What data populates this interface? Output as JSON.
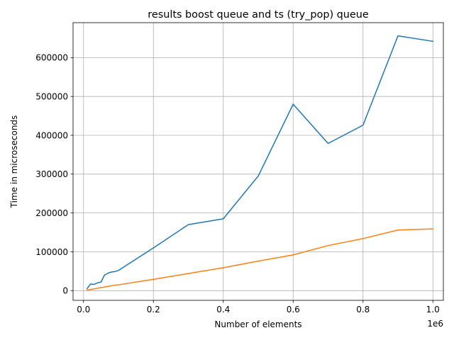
{
  "chart_data": {
    "type": "line",
    "title": "results boost queue and ts (try_pop) queue",
    "xlabel": "Number of elements",
    "ylabel": "Time in microseconds",
    "x_offset_label": "1e6",
    "xlim": [
      -30000,
      1030000
    ],
    "ylim": [
      -25000,
      690000
    ],
    "x_ticks": [
      0,
      200000,
      400000,
      600000,
      800000,
      1000000
    ],
    "x_tick_labels": [
      "0.0",
      "0.2",
      "0.4",
      "0.6",
      "0.8",
      "1.0"
    ],
    "y_ticks": [
      0,
      100000,
      200000,
      300000,
      400000,
      500000,
      600000
    ],
    "y_tick_labels": [
      "0",
      "100000",
      "200000",
      "300000",
      "400000",
      "500000",
      "600000"
    ],
    "grid": true,
    "series": [
      {
        "color": "#1f77b4",
        "x": [
          10000,
          20000,
          30000,
          40000,
          50000,
          60000,
          70000,
          80000,
          90000,
          100000,
          200000,
          300000,
          400000,
          500000,
          600000,
          700000,
          800000,
          900000,
          1000000
        ],
        "y": [
          5000,
          17000,
          16000,
          20000,
          22000,
          40000,
          45000,
          48000,
          49000,
          52000,
          110000,
          170000,
          185000,
          295000,
          480000,
          379000,
          426000,
          656000,
          642000
        ]
      },
      {
        "color": "#ff7f0e",
        "x": [
          10000,
          20000,
          30000,
          40000,
          50000,
          60000,
          70000,
          80000,
          90000,
          100000,
          200000,
          300000,
          400000,
          500000,
          600000,
          700000,
          800000,
          900000,
          1000000
        ],
        "y": [
          1000,
          3000,
          4500,
          6000,
          8000,
          9000,
          11000,
          12500,
          14000,
          15000,
          29000,
          44000,
          59000,
          76000,
          92000,
          116000,
          134000,
          156000,
          159000
        ]
      }
    ]
  }
}
